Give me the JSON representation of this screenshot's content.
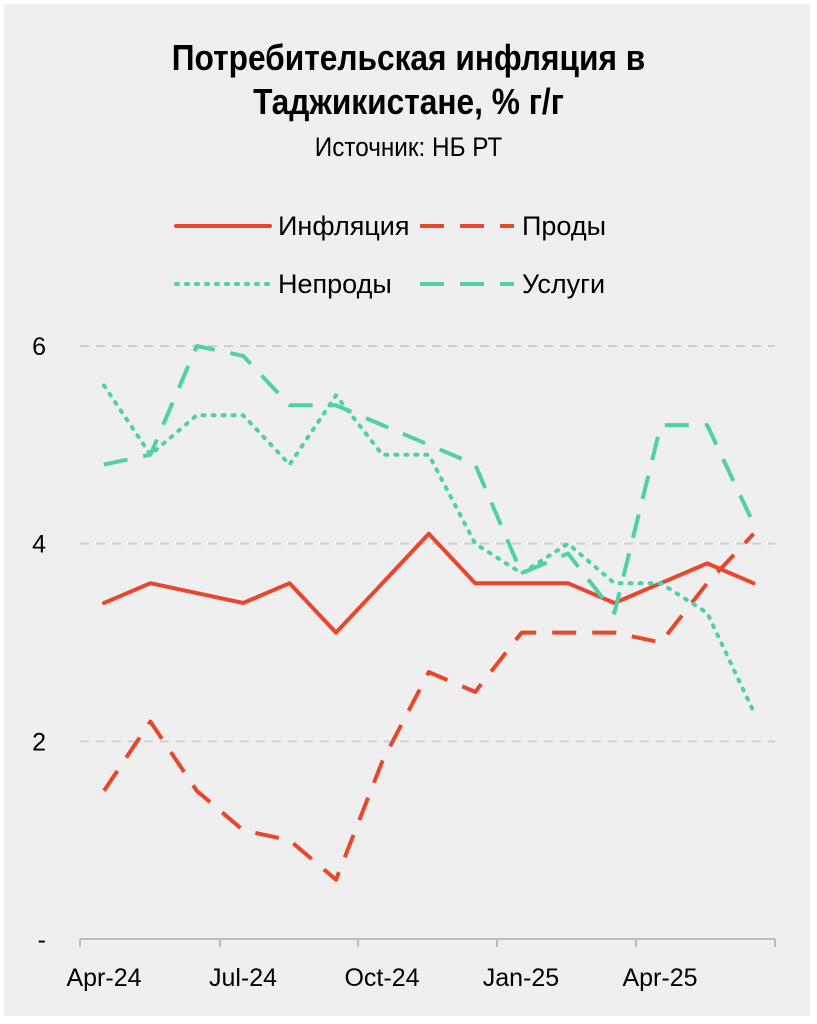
{
  "title_line1": "Потребительская инфляция в",
  "title_line2": "Таджикистане, % г/г",
  "subtitle": "Источник: НБ РТ",
  "chart_data": {
    "type": "line",
    "title": "Потребительская инфляция в Таджикистане, % г/г",
    "subtitle": "Источник: НБ РТ",
    "xlabel": "",
    "ylabel": "",
    "x": [
      "Apr-24",
      "May-24",
      "Jun-24",
      "Jul-24",
      "Aug-24",
      "Sep-24",
      "Oct-24",
      "Nov-24",
      "Dec-24",
      "Jan-25",
      "Feb-25",
      "Mar-25",
      "Apr-25",
      "May-25",
      "Jun-25"
    ],
    "x_tick_labels": [
      "Apr-24",
      "Jul-24",
      "Oct-24",
      "Jan-25",
      "Apr-25"
    ],
    "y_tick_labels": [
      "-",
      "2",
      "4",
      "6"
    ],
    "ylim": [
      0,
      6
    ],
    "grid": true,
    "legend_position": "top",
    "series": [
      {
        "name": "Инфляция",
        "color": "#e8462d",
        "style": "solid",
        "values": [
          3.4,
          3.6,
          3.5,
          3.4,
          3.6,
          3.1,
          3.6,
          4.1,
          3.6,
          3.6,
          3.6,
          3.4,
          3.6,
          3.8,
          3.6
        ]
      },
      {
        "name": "Проды",
        "color": "#e8462d",
        "style": "dashed",
        "values": [
          1.5,
          2.2,
          1.5,
          1.1,
          1.0,
          0.6,
          1.8,
          2.7,
          2.5,
          3.1,
          3.1,
          3.1,
          3.0,
          3.6,
          4.1
        ]
      },
      {
        "name": "Непроды",
        "color": "#4fd0a8",
        "style": "dotted",
        "values": [
          5.6,
          4.9,
          5.3,
          5.3,
          4.8,
          5.5,
          4.9,
          4.9,
          4.0,
          3.7,
          4.0,
          3.6,
          3.6,
          3.3,
          2.3
        ]
      },
      {
        "name": "Услуги",
        "color": "#4fd0a8",
        "style": "dashed",
        "values": [
          4.8,
          4.9,
          6.0,
          5.9,
          5.4,
          5.4,
          5.2,
          5.0,
          4.8,
          3.7,
          3.9,
          3.3,
          5.2,
          5.2,
          4.2
        ]
      }
    ]
  }
}
